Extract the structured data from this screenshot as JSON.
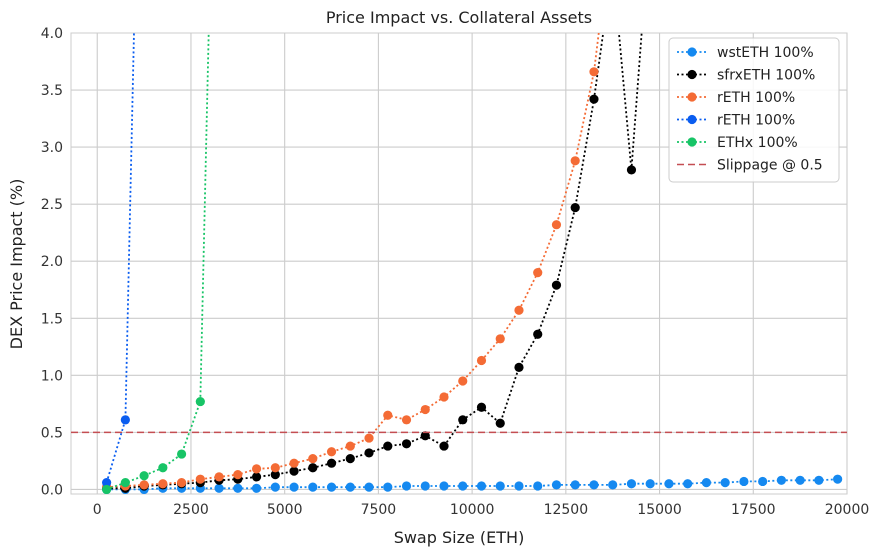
{
  "chart_data": {
    "type": "line",
    "title": "Price Impact vs. Collateral Assets",
    "xlabel": "Swap Size (ETH)",
    "ylabel": "DEX Price Impact (%)",
    "xlim": [
      -700,
      20000
    ],
    "ylim": [
      -0.04,
      4.0
    ],
    "xticks": [
      0,
      2500,
      5000,
      7500,
      10000,
      12500,
      15000,
      17500,
      20000
    ],
    "yticks": [
      0.0,
      0.5,
      1.0,
      1.5,
      2.0,
      2.5,
      3.0,
      3.5,
      4.0
    ],
    "xtick_labels": [
      "0",
      "2500",
      "5000",
      "7500",
      "10000",
      "12500",
      "15000",
      "17500",
      "20000"
    ],
    "ytick_labels": [
      "0.0",
      "0.5",
      "1.0",
      "1.5",
      "2.0",
      "2.5",
      "3.0",
      "3.5",
      "4.0"
    ],
    "grid": true,
    "legend_position": "top-right",
    "series": [
      {
        "name": "wstETH 100%",
        "color": "#1589f0",
        "style": "dotted-marker",
        "x": [
          250,
          750,
          1250,
          1750,
          2250,
          2750,
          3250,
          3750,
          4250,
          4750,
          5250,
          5750,
          6250,
          6750,
          7250,
          7750,
          8250,
          8750,
          9250,
          9750,
          10250,
          10750,
          11250,
          11750,
          12250,
          12750,
          13250,
          13750,
          14250,
          14750,
          15250,
          15750,
          16250,
          16750,
          17250,
          17750,
          18250,
          18750,
          19250,
          19750
        ],
        "y": [
          0.0,
          0.0,
          0.0,
          0.01,
          0.01,
          0.01,
          0.01,
          0.01,
          0.01,
          0.02,
          0.02,
          0.02,
          0.02,
          0.02,
          0.02,
          0.02,
          0.03,
          0.03,
          0.03,
          0.03,
          0.03,
          0.03,
          0.03,
          0.03,
          0.04,
          0.04,
          0.04,
          0.04,
          0.05,
          0.05,
          0.05,
          0.05,
          0.06,
          0.06,
          0.07,
          0.07,
          0.08,
          0.08,
          0.08,
          0.09
        ]
      },
      {
        "name": "sfrxETH 100%",
        "color": "#000000",
        "style": "dotted-marker",
        "x": [
          250,
          750,
          1250,
          1750,
          2250,
          2750,
          3250,
          3750,
          4250,
          4750,
          5250,
          5750,
          6250,
          6750,
          7250,
          7750,
          8250,
          8750,
          9250,
          9750,
          10250,
          10750,
          11250,
          11750,
          12250,
          12750,
          13250,
          13750,
          14250,
          14750
        ],
        "y": [
          0.01,
          0.01,
          0.03,
          0.04,
          0.05,
          0.06,
          0.08,
          0.09,
          0.11,
          0.13,
          0.16,
          0.19,
          0.23,
          0.27,
          0.32,
          0.38,
          0.4,
          0.47,
          0.38,
          0.61,
          0.72,
          0.58,
          1.07,
          1.36,
          1.79,
          2.47,
          3.42,
          4.6,
          2.8,
          5.0
        ]
      },
      {
        "name": "rETH 100%",
        "color": "#f46b35",
        "style": "dotted-marker",
        "x": [
          250,
          750,
          1250,
          1750,
          2250,
          2750,
          3250,
          3750,
          4250,
          4750,
          5250,
          5750,
          6250,
          6750,
          7250,
          7750,
          8250,
          8750,
          9250,
          9750,
          10250,
          10750,
          11250,
          11750,
          12250,
          12750,
          13250,
          13750
        ],
        "y": [
          0.02,
          0.03,
          0.04,
          0.05,
          0.06,
          0.09,
          0.11,
          0.13,
          0.18,
          0.19,
          0.23,
          0.27,
          0.33,
          0.38,
          0.45,
          0.65,
          0.61,
          0.7,
          0.81,
          0.95,
          1.13,
          1.32,
          1.57,
          1.9,
          2.32,
          2.88,
          3.66,
          5.0
        ]
      },
      {
        "name": "rETH 100%",
        "color": "#0a5df0",
        "style": "dotted-marker",
        "x": [
          250,
          750,
          1250
        ],
        "y": [
          0.06,
          0.61,
          8.0
        ]
      },
      {
        "name": "ETHx 100%",
        "color": "#17c466",
        "style": "dotted-marker",
        "x": [
          250,
          750,
          1250,
          1750,
          2250,
          2750,
          3250
        ],
        "y": [
          0.0,
          0.06,
          0.12,
          0.19,
          0.31,
          0.77,
          8.0
        ]
      },
      {
        "name": "Slippage @ 0.5",
        "color": "#c44e52",
        "style": "dashed",
        "hline": 0.5
      }
    ]
  }
}
